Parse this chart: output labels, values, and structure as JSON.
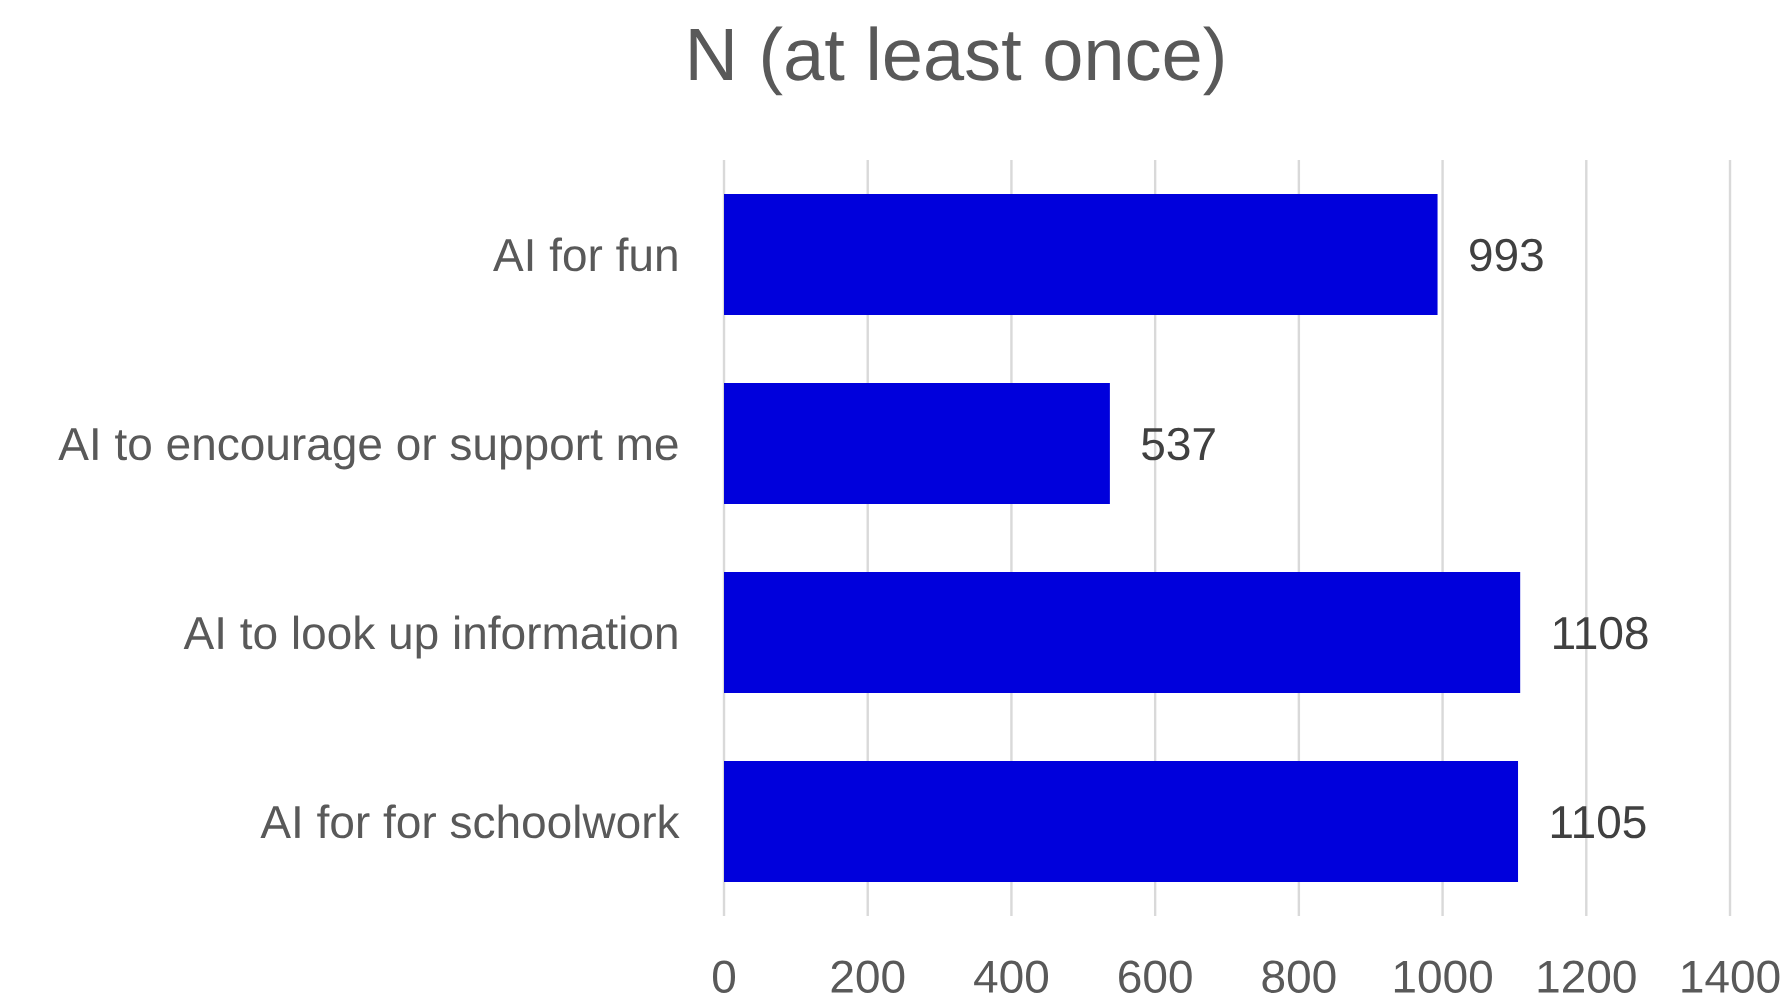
{
  "chart_data": {
    "type": "bar",
    "orientation": "horizontal",
    "title": "N (at least once)",
    "categories": [
      "AI for fun",
      "AI to encourage or support me",
      "AI to look up information",
      "AI for for schoolwork"
    ],
    "values": [
      993,
      537,
      1108,
      1105
    ],
    "color": "#0000dc",
    "xlim": [
      0,
      1400
    ],
    "xticks": [
      0,
      200,
      400,
      600,
      800,
      1000,
      1200,
      1400
    ],
    "grid": "x",
    "data_labels": true
  }
}
